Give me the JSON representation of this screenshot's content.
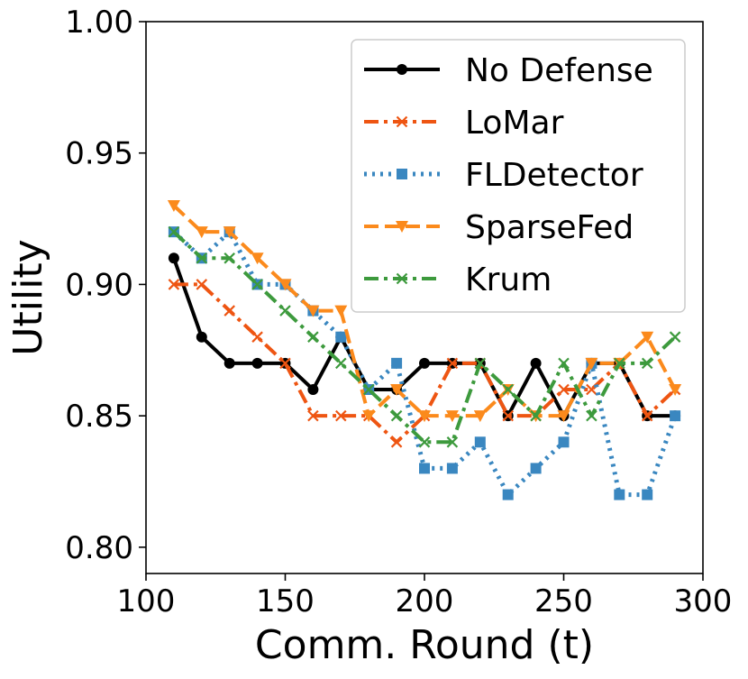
{
  "chart_data": {
    "type": "line",
    "title": "",
    "xlabel": "Comm. Round (t)",
    "ylabel": "Utility",
    "xlim": [
      100,
      300
    ],
    "ylim": [
      0.79,
      1.0
    ],
    "xticks": [
      100,
      150,
      200,
      250,
      300
    ],
    "yticks": [
      0.8,
      0.85,
      0.9,
      0.95,
      1.0
    ],
    "xtick_labels": [
      "100",
      "150",
      "200",
      "250",
      "300"
    ],
    "ytick_labels": [
      "0.80",
      "0.85",
      "0.90",
      "0.95",
      "1.00"
    ],
    "grid": false,
    "legend_position": "top-right",
    "x": [
      110,
      120,
      130,
      140,
      150,
      160,
      170,
      180,
      190,
      200,
      210,
      220,
      230,
      240,
      250,
      260,
      270,
      280,
      290
    ],
    "series": [
      {
        "name": "No Defense",
        "color": "#000000",
        "dash": "solid",
        "marker": "circle",
        "values": [
          0.91,
          0.88,
          0.87,
          0.87,
          0.87,
          0.86,
          0.88,
          0.86,
          0.86,
          0.87,
          0.87,
          0.87,
          0.85,
          0.87,
          0.85,
          0.87,
          0.87,
          0.85,
          0.85
        ]
      },
      {
        "name": "LoMar",
        "color": "#ee5512",
        "dash": "dashdot",
        "marker": "x",
        "values": [
          0.9,
          0.9,
          0.89,
          0.88,
          0.87,
          0.85,
          0.85,
          0.85,
          0.84,
          0.85,
          0.87,
          0.87,
          0.85,
          0.85,
          0.86,
          0.86,
          0.87,
          0.85,
          0.86
        ]
      },
      {
        "name": "FLDetector",
        "color": "#3a87c0",
        "dash": "dotted",
        "marker": "square",
        "values": [
          0.92,
          0.91,
          0.92,
          0.9,
          0.9,
          0.89,
          0.88,
          0.86,
          0.87,
          0.83,
          0.83,
          0.84,
          0.82,
          0.83,
          0.84,
          0.87,
          0.82,
          0.82,
          0.85
        ]
      },
      {
        "name": "SparseFed",
        "color": "#fb8a1c",
        "dash": "dashed",
        "marker": "triangle-down",
        "values": [
          0.93,
          0.92,
          0.92,
          0.91,
          0.9,
          0.89,
          0.89,
          0.85,
          0.86,
          0.85,
          0.85,
          0.85,
          0.86,
          0.85,
          0.85,
          0.87,
          0.87,
          0.88,
          0.86
        ]
      },
      {
        "name": "Krum",
        "color": "#3d9a3d",
        "dash": "dashdot",
        "marker": "x",
        "values": [
          0.92,
          0.91,
          0.91,
          0.9,
          0.89,
          0.88,
          0.87,
          0.86,
          0.85,
          0.84,
          0.84,
          0.87,
          0.86,
          0.85,
          0.87,
          0.85,
          0.87,
          0.87,
          0.88
        ]
      }
    ]
  }
}
